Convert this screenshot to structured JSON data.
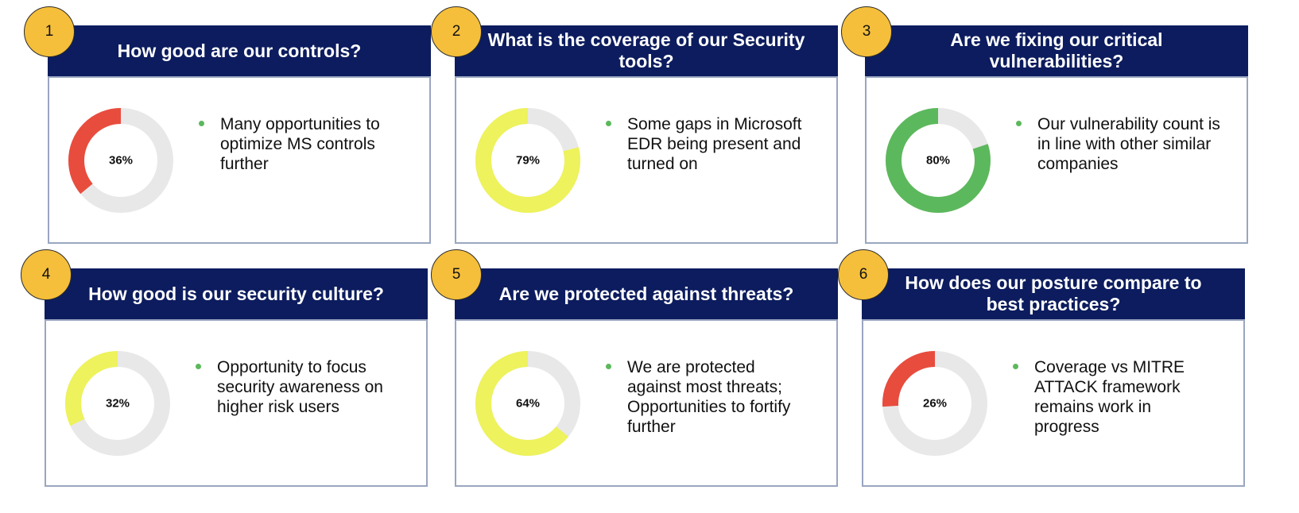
{
  "chart_data": [
    {
      "type": "pie",
      "number": "1",
      "title": "How good are our controls?",
      "value": 36,
      "label": "36%",
      "color": "#e84c3d",
      "bullet": "Many opportunities to optimize MS controls further"
    },
    {
      "type": "pie",
      "number": "2",
      "title": "What is the coverage of our Security tools?",
      "value": 79,
      "label": "79%",
      "color": "#eef25c",
      "bullet": "Some gaps in Microsoft EDR being present and turned on"
    },
    {
      "type": "pie",
      "number": "3",
      "title": "Are we fixing our critical vulnerabilities?",
      "value": 80,
      "label": "80%",
      "color": "#5cb85c",
      "bullet": "Our vulnerability count is in line with other similar companies"
    },
    {
      "type": "pie",
      "number": "4",
      "title": "How good is our security culture?",
      "value": 32,
      "label": "32%",
      "color": "#eef25c",
      "bullet": "Opportunity to focus security awareness on higher risk users"
    },
    {
      "type": "pie",
      "number": "5",
      "title": "Are we protected against threats?",
      "value": 64,
      "label": "64%",
      "color": "#eef25c",
      "bullet": "We are protected against most threats; Opportunities to fortify further"
    },
    {
      "type": "pie",
      "number": "6",
      "title": "How does our posture compare to best practices?",
      "value": 26,
      "label": "26%",
      "color": "#e84c3d",
      "bullet": "Coverage vs MITRE ATTACK framework remains work in progress"
    }
  ],
  "ring_track_color": "#e8e8e8",
  "badge_color": "#f5bf3b",
  "header_color": "#0c1c5e",
  "bullet_color": "#5cb85c"
}
